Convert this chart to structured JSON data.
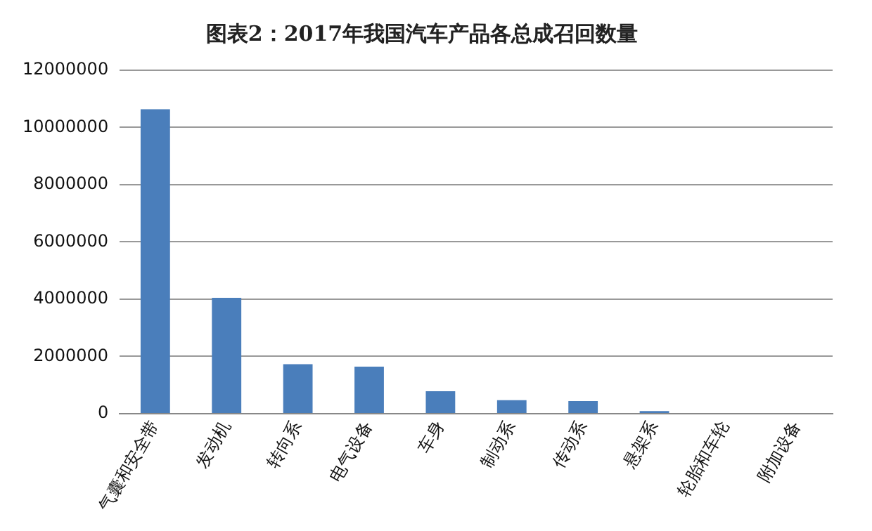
{
  "chart_data": {
    "type": "bar",
    "title": "图表2：2017年我国汽车产品各总成召回数量",
    "categories": [
      "气囊和安全带",
      "发动机",
      "转向系",
      "电气设备",
      "车身",
      "制动系",
      "传动系",
      "悬架系",
      "轮胎和车轮",
      "附加设备"
    ],
    "values": [
      10640000,
      4050000,
      1730000,
      1640000,
      780000,
      470000,
      440000,
      90000,
      0,
      0
    ],
    "color": "#4a7ebb",
    "ylim": [
      0,
      12000000
    ],
    "yticks": [
      0,
      2000000,
      4000000,
      6000000,
      8000000,
      10000000,
      12000000
    ],
    "grid": "y",
    "legend": false
  }
}
